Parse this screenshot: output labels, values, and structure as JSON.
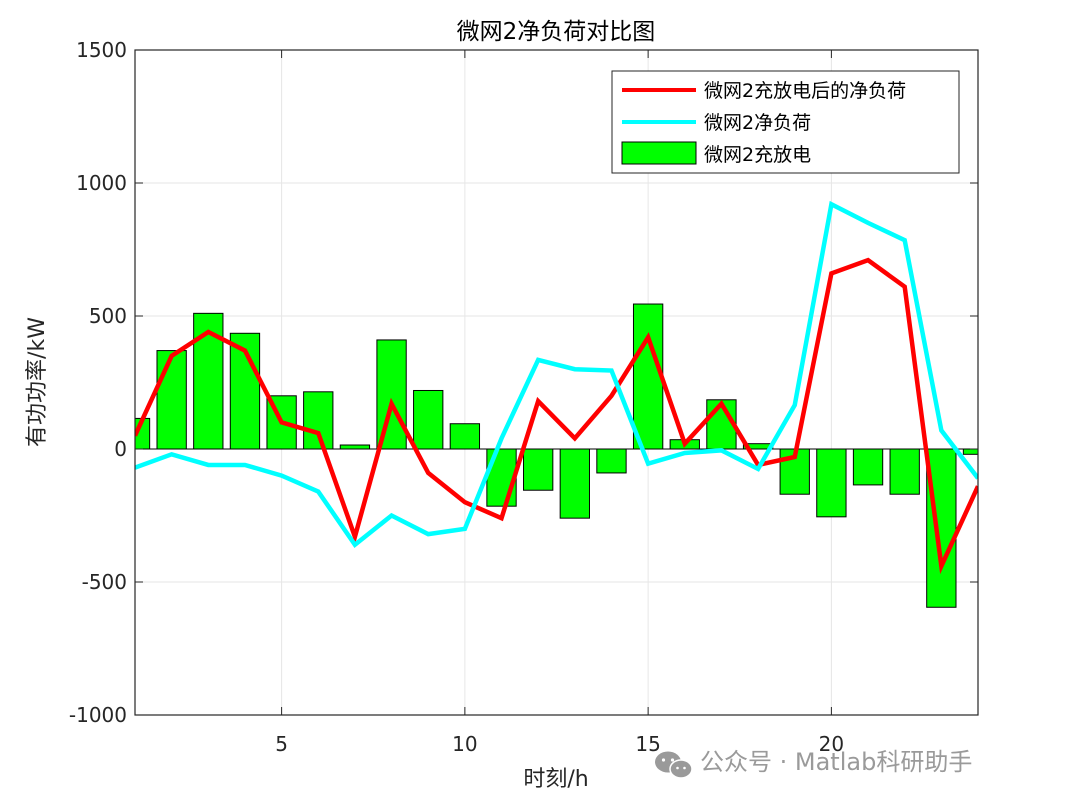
{
  "chart_data": {
    "type": "bar",
    "title": "微网2净负荷对比图",
    "xlabel": "时刻/h",
    "ylabel": "有功功率/kW",
    "xlim": [
      1,
      24
    ],
    "ylim": [
      -1000,
      1500
    ],
    "xticks": [
      5,
      10,
      15,
      20
    ],
    "yticks": [
      -1000,
      -500,
      0,
      500,
      1000,
      1500
    ],
    "grid": true,
    "legend_position": "top-right",
    "x": [
      1,
      2,
      3,
      4,
      5,
      6,
      7,
      8,
      9,
      10,
      11,
      12,
      13,
      14,
      15,
      16,
      17,
      18,
      19,
      20,
      21,
      22,
      23,
      24
    ],
    "series": [
      {
        "name": "微网2充放电后的净负荷",
        "kind": "line",
        "color": "#ff0000",
        "values": [
          50,
          350,
          440,
          370,
          100,
          60,
          -330,
          170,
          -90,
          -200,
          -260,
          180,
          40,
          200,
          420,
          20,
          170,
          -60,
          -30,
          660,
          710,
          610,
          -440,
          -140
        ]
      },
      {
        "name": "微网2净负荷",
        "kind": "line",
        "color": "#00ffff",
        "values": [
          -70,
          -20,
          -60,
          -60,
          -100,
          -160,
          -360,
          -250,
          -320,
          -300,
          40,
          335,
          300,
          295,
          -55,
          -15,
          -5,
          -75,
          165,
          920,
          850,
          785,
          70,
          -110
        ]
      },
      {
        "name": "微网2充放电",
        "kind": "bar",
        "color": "#00ff00",
        "values": [
          115,
          370,
          510,
          435,
          200,
          215,
          15,
          410,
          220,
          95,
          -215,
          -155,
          -260,
          -90,
          545,
          35,
          185,
          20,
          -170,
          -255,
          -135,
          -170,
          -595,
          -20
        ]
      }
    ]
  },
  "watermark": {
    "text": "公众号 · Matlab科研助手",
    "icon": "wechat-icon"
  }
}
